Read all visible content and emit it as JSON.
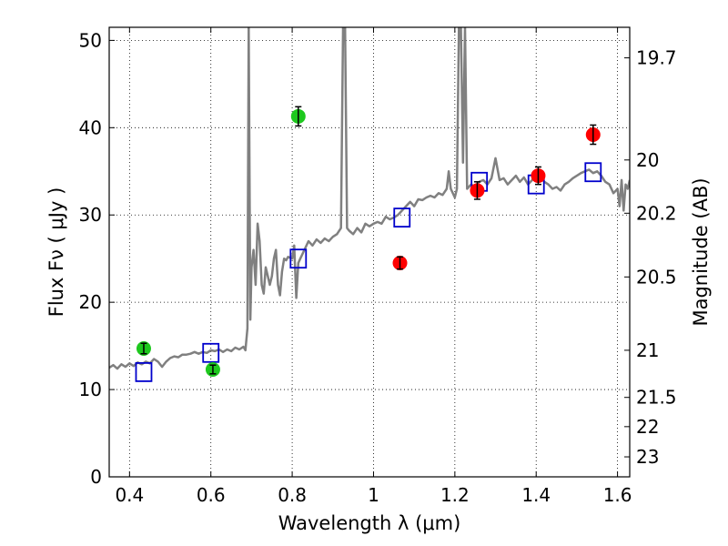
{
  "chart_data": {
    "type": "scatter",
    "title": "",
    "xlabel": "Wavelength  λ (μm)",
    "ylabel": "Flux  Fν  ( μJy )",
    "y2label": "Magnitude (AB)",
    "xlim": [
      0.35,
      1.63
    ],
    "ylim": [
      0,
      51.5
    ],
    "grid": true,
    "x_ticks": [
      0.4,
      0.6,
      0.8,
      1.0,
      1.2,
      1.4,
      1.6
    ],
    "x_tick_labels": [
      "0.4",
      "0.6",
      "0.8",
      "1",
      "1.2",
      "1.4",
      "1.6"
    ],
    "y_ticks": [
      0,
      10,
      20,
      30,
      40,
      50
    ],
    "y_tick_labels": [
      "0",
      "10",
      "20",
      "30",
      "40",
      "50"
    ],
    "y2_ticks": [
      {
        "label": "19.7",
        "flux": 48.0
      },
      {
        "label": "20",
        "flux": 36.3
      },
      {
        "label": "20.2",
        "flux": 30.2
      },
      {
        "label": "20.5",
        "flux": 22.9
      },
      {
        "label": "21",
        "flux": 14.5
      },
      {
        "label": "21.5",
        "flux": 9.1
      },
      {
        "label": "22",
        "flux": 5.75
      },
      {
        "label": "23",
        "flux": 2.29
      }
    ],
    "series": [
      {
        "kind": "line",
        "color": "#808080",
        "points": [
          [
            0.35,
            12.5
          ],
          [
            0.36,
            12.8
          ],
          [
            0.37,
            12.4
          ],
          [
            0.38,
            12.9
          ],
          [
            0.39,
            12.6
          ],
          [
            0.4,
            13.0
          ],
          [
            0.41,
            12.7
          ],
          [
            0.42,
            13.1
          ],
          [
            0.43,
            12.9
          ],
          [
            0.44,
            13.2
          ],
          [
            0.45,
            13.0
          ],
          [
            0.46,
            13.5
          ],
          [
            0.47,
            13.2
          ],
          [
            0.48,
            12.6
          ],
          [
            0.49,
            13.2
          ],
          [
            0.5,
            13.6
          ],
          [
            0.51,
            13.8
          ],
          [
            0.52,
            13.7
          ],
          [
            0.53,
            14.0
          ],
          [
            0.54,
            14.0
          ],
          [
            0.55,
            14.1
          ],
          [
            0.56,
            14.3
          ],
          [
            0.57,
            14.1
          ],
          [
            0.58,
            14.3
          ],
          [
            0.59,
            14.2
          ],
          [
            0.6,
            14.5
          ],
          [
            0.61,
            14.4
          ],
          [
            0.62,
            14.6
          ],
          [
            0.63,
            14.3
          ],
          [
            0.64,
            14.6
          ],
          [
            0.65,
            14.4
          ],
          [
            0.66,
            14.8
          ],
          [
            0.67,
            14.6
          ],
          [
            0.68,
            14.9
          ],
          [
            0.685,
            14.5
          ],
          [
            0.69,
            17.0
          ],
          [
            0.693,
            51.5
          ],
          [
            0.697,
            18.0
          ],
          [
            0.7,
            24.0
          ],
          [
            0.705,
            26.0
          ],
          [
            0.71,
            22.0
          ],
          [
            0.715,
            29.0
          ],
          [
            0.72,
            27.0
          ],
          [
            0.725,
            22.0
          ],
          [
            0.73,
            21.0
          ],
          [
            0.735,
            24.0
          ],
          [
            0.74,
            23.0
          ],
          [
            0.745,
            22.0
          ],
          [
            0.75,
            23.0
          ],
          [
            0.755,
            25.0
          ],
          [
            0.76,
            26.0
          ],
          [
            0.765,
            22.0
          ],
          [
            0.77,
            20.8
          ],
          [
            0.775,
            23.5
          ],
          [
            0.78,
            25.0
          ],
          [
            0.785,
            24.8
          ],
          [
            0.79,
            25.2
          ],
          [
            0.8,
            25.0
          ],
          [
            0.805,
            26.5
          ],
          [
            0.81,
            20.5
          ],
          [
            0.815,
            24.5
          ],
          [
            0.82,
            25.0
          ],
          [
            0.83,
            26.0
          ],
          [
            0.84,
            27.0
          ],
          [
            0.85,
            26.5
          ],
          [
            0.86,
            27.2
          ],
          [
            0.87,
            26.8
          ],
          [
            0.88,
            27.3
          ],
          [
            0.89,
            27.0
          ],
          [
            0.9,
            27.5
          ],
          [
            0.91,
            27.8
          ],
          [
            0.92,
            28.5
          ],
          [
            0.925,
            51.5
          ],
          [
            0.93,
            51.5
          ],
          [
            0.935,
            28.5
          ],
          [
            0.94,
            28.2
          ],
          [
            0.95,
            27.8
          ],
          [
            0.96,
            28.5
          ],
          [
            0.97,
            28.0
          ],
          [
            0.98,
            29.0
          ],
          [
            0.99,
            28.7
          ],
          [
            1.0,
            29.0
          ],
          [
            1.01,
            29.2
          ],
          [
            1.02,
            29.0
          ],
          [
            1.03,
            29.8
          ],
          [
            1.04,
            29.5
          ],
          [
            1.05,
            29.7
          ],
          [
            1.06,
            30.0
          ],
          [
            1.07,
            30.5
          ],
          [
            1.08,
            31.0
          ],
          [
            1.09,
            31.5
          ],
          [
            1.1,
            31.0
          ],
          [
            1.11,
            31.8
          ],
          [
            1.12,
            31.7
          ],
          [
            1.13,
            32.0
          ],
          [
            1.14,
            32.2
          ],
          [
            1.15,
            32.0
          ],
          [
            1.16,
            32.5
          ],
          [
            1.17,
            32.3
          ],
          [
            1.18,
            33.0
          ],
          [
            1.185,
            35.0
          ],
          [
            1.19,
            33.0
          ],
          [
            1.2,
            32.0
          ],
          [
            1.205,
            33.0
          ],
          [
            1.21,
            51.5
          ],
          [
            1.215,
            51.5
          ],
          [
            1.22,
            36.0
          ],
          [
            1.225,
            51.5
          ],
          [
            1.23,
            33.0
          ],
          [
            1.24,
            33.5
          ],
          [
            1.25,
            33.2
          ],
          [
            1.26,
            33.8
          ],
          [
            1.27,
            34.0
          ],
          [
            1.28,
            33.5
          ],
          [
            1.29,
            34.2
          ],
          [
            1.3,
            36.5
          ],
          [
            1.31,
            34.0
          ],
          [
            1.32,
            34.2
          ],
          [
            1.33,
            33.5
          ],
          [
            1.34,
            34.0
          ],
          [
            1.35,
            34.5
          ],
          [
            1.36,
            33.8
          ],
          [
            1.37,
            34.3
          ],
          [
            1.38,
            33.5
          ],
          [
            1.39,
            34.0
          ],
          [
            1.4,
            35.0
          ],
          [
            1.41,
            34.5
          ],
          [
            1.42,
            33.8
          ],
          [
            1.43,
            33.5
          ],
          [
            1.44,
            33.0
          ],
          [
            1.45,
            33.2
          ],
          [
            1.46,
            32.8
          ],
          [
            1.47,
            33.5
          ],
          [
            1.48,
            33.8
          ],
          [
            1.49,
            34.2
          ],
          [
            1.5,
            34.5
          ],
          [
            1.51,
            34.8
          ],
          [
            1.52,
            35.0
          ],
          [
            1.53,
            35.2
          ],
          [
            1.54,
            34.8
          ],
          [
            1.55,
            35.0
          ],
          [
            1.56,
            34.5
          ],
          [
            1.57,
            33.8
          ],
          [
            1.58,
            33.5
          ],
          [
            1.59,
            32.5
          ],
          [
            1.6,
            33.0
          ],
          [
            1.605,
            31.0
          ],
          [
            1.61,
            34.0
          ],
          [
            1.615,
            30.5
          ],
          [
            1.62,
            33.5
          ],
          [
            1.625,
            33.0
          ],
          [
            1.63,
            34.0
          ]
        ]
      },
      {
        "kind": "points",
        "marker": "circle",
        "color": "#1ec81e",
        "points": [
          {
            "x": 0.435,
            "y": 14.7,
            "err": 0.6
          },
          {
            "x": 0.605,
            "y": 12.3,
            "err": 0.5
          },
          {
            "x": 0.815,
            "y": 41.3,
            "err": 1.1
          }
        ]
      },
      {
        "kind": "points",
        "marker": "circle",
        "color": "#ff0000",
        "points": [
          {
            "x": 1.065,
            "y": 24.5,
            "err": 0.7
          },
          {
            "x": 1.255,
            "y": 32.8,
            "err": 1.0
          },
          {
            "x": 1.405,
            "y": 34.5,
            "err": 1.0
          },
          {
            "x": 1.54,
            "y": 39.2,
            "err": 1.1
          }
        ]
      },
      {
        "kind": "points",
        "marker": "open-square",
        "color": "#0000cc",
        "points": [
          {
            "x": 0.435,
            "y": 12.0
          },
          {
            "x": 0.6,
            "y": 14.2
          },
          {
            "x": 0.815,
            "y": 25.0
          },
          {
            "x": 1.07,
            "y": 29.7
          },
          {
            "x": 1.26,
            "y": 33.8
          },
          {
            "x": 1.4,
            "y": 33.5
          },
          {
            "x": 1.54,
            "y": 34.9
          }
        ]
      }
    ]
  }
}
